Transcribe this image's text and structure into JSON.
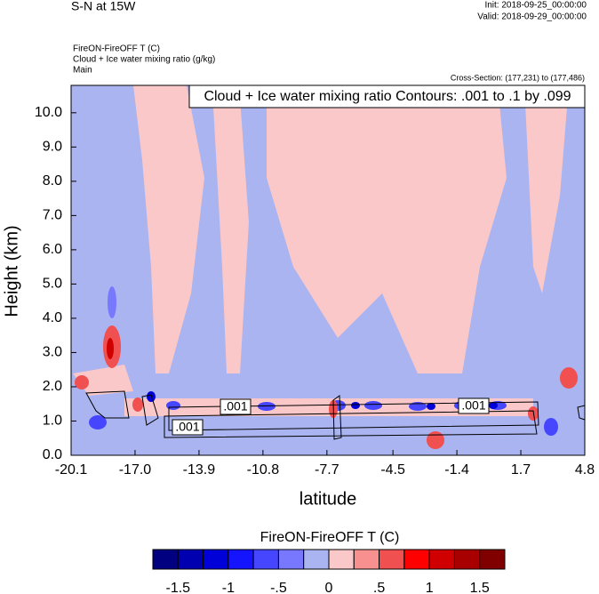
{
  "chart_data": {
    "type": "contour",
    "title": "S-N at 15W",
    "init": "Init: 2018-09-25_00:00:00",
    "valid": "Valid: 2018-09-29_00:00:00",
    "field_title": "FireON-FireOFF T   (C)",
    "contour_field_title": "Cloud + Ice water mixing ratio   (g/kg)",
    "domain": "Main",
    "cross_section": "Cross-Section: (177,231) to (177,486)",
    "contour_info": "Cloud + Ice water mixing ratio Contours: .001 to .1 by .099",
    "contour_labels": [
      ".001",
      ".001",
      ".001"
    ],
    "xlabel": "latitude",
    "ylabel": "Height (km)",
    "xlim": [
      -20.1,
      4.8
    ],
    "xticks": [
      -20.1,
      {
        "value": -17,
        "label": "-17.0"
      },
      -13.9,
      -10.8,
      -7.7,
      -4.5,
      -1.4,
      1.7,
      4.8
    ],
    "ylim": [
      0,
      10.8
    ],
    "yticks": [
      {
        "value": 0,
        "label": "0.0"
      },
      {
        "value": 1,
        "label": "1.0"
      },
      {
        "value": 2,
        "label": "2.0"
      },
      {
        "value": 3,
        "label": "3.0"
      },
      {
        "value": 4,
        "label": "4.0"
      },
      {
        "value": 5,
        "label": "5.0"
      },
      {
        "value": 6,
        "label": "6.0"
      },
      {
        "value": 7,
        "label": "7.0"
      },
      {
        "value": 8,
        "label": "8.0"
      },
      {
        "value": 9,
        "label": "9.0"
      },
      {
        "value": 10,
        "label": "10.0"
      }
    ],
    "colorbar": {
      "title": "FireON-FireOFF T  (C)",
      "levels": [
        -1.5,
        -1.25,
        -1,
        -0.75,
        -0.5,
        -0.25,
        0,
        0.25,
        0.5,
        0.75,
        1,
        1.25,
        1.5
      ],
      "colors": [
        "#000080",
        "#0000b0",
        "#0000d8",
        "#1414ff",
        "#4646ff",
        "#7878ff",
        "#aab4f0",
        "#fac8c8",
        "#f89090",
        "#f05050",
        "#ff0000",
        "#d00000",
        "#a80000",
        "#800000"
      ],
      "ticks": [
        {
          "value": -1.5,
          "label": "-1.5"
        },
        {
          "value": -1,
          "label": "-1"
        },
        {
          "value": -0.5,
          "label": "-.5"
        },
        0,
        {
          "value": 0.5,
          "label": ".5"
        },
        1,
        1.5
      ]
    }
  }
}
